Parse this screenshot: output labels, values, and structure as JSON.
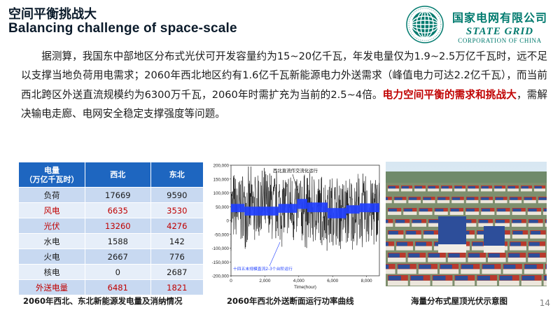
{
  "title": {
    "zh": "空间平衡挑战大",
    "en": "Balancing challenge of space-scale"
  },
  "logo": {
    "zh": "国家电网有限公司",
    "en": "STATE GRID",
    "sub": "CORPORATION OF CHINA",
    "colors": {
      "brand": "#007a6e"
    }
  },
  "paragraph": {
    "before": "据测算，我国东中部地区分布式光伏可开发容量约为15~20亿千瓦，年发电量仅为1.9~2.5万亿千瓦时，远不足以支撑当地负荷用电需求；2060年西北地区约有1.6亿千瓦新能源电力外送需求（峰值电力可达2.2亿千瓦），而当前西北跨区外送直流规模约为6300万千瓦，2060年时需扩充为当前的2.5~4倍。",
    "highlight": "电力空间平衡的需求和挑战大",
    "after": "，需解决输电走廊、电网安全稳定支撑强度等问题。"
  },
  "table": {
    "header_line1": "电量",
    "header_line2": "（万亿千瓦时）",
    "col1": "西北",
    "col2": "东北",
    "rows": [
      {
        "label": "负荷",
        "nw": "17669",
        "ne": "9590",
        "red": false
      },
      {
        "label": "风电",
        "nw": "6635",
        "ne": "3530",
        "red": true
      },
      {
        "label": "光伏",
        "nw": "13260",
        "ne": "4276",
        "red": true
      },
      {
        "label": "水电",
        "nw": "1588",
        "ne": "142",
        "red": false
      },
      {
        "label": "火电",
        "nw": "2667",
        "ne": "776",
        "red": false
      },
      {
        "label": "核电",
        "nw": "0",
        "ne": "2687",
        "red": false
      },
      {
        "label": "外送电量",
        "nw": "6481",
        "ne": "1821",
        "red": true
      }
    ]
  },
  "captions": {
    "table": "2060年西北、东北新能源发电量及消纳情况",
    "chart": "2060年西北外送断面运行功率曲线",
    "photo": "海量分布式屋顶光伏示意图"
  },
  "chart_data": {
    "type": "line",
    "xlabel": "Time(hour)",
    "ylabel": "",
    "xlim": [
      0,
      8760
    ],
    "ylim": [
      -200000,
      200000
    ],
    "xticks": [
      "0",
      "2,000",
      "4,000",
      "6,000",
      "8,000"
    ],
    "yticks": [
      "200,000",
      "150,000",
      "100,000",
      "50,000",
      "0",
      "-50,000",
      "-100,000",
      "-150,000",
      "-200,000"
    ],
    "annotations": [
      "西北直流作交流化运行",
      "十四五末规模直流2-3个台阶运行"
    ],
    "series": [
      {
        "color": "#000000",
        "mean": 40000,
        "spread": 155000
      },
      {
        "color": "#1f3fff",
        "steps": [
          {
            "x0": 0,
            "x1": 800,
            "lo": 30000,
            "hi": 60000
          },
          {
            "x0": 800,
            "x1": 2800,
            "lo": 18000,
            "hi": 50000
          },
          {
            "x0": 2800,
            "x1": 3900,
            "lo": 28000,
            "hi": 60000
          },
          {
            "x0": 3900,
            "x1": 4500,
            "lo": 42000,
            "hi": 78000
          },
          {
            "x0": 4500,
            "x1": 5700,
            "lo": 30000,
            "hi": 65000
          },
          {
            "x0": 5700,
            "x1": 6800,
            "lo": 8000,
            "hi": 45000
          },
          {
            "x0": 6800,
            "x1": 7600,
            "lo": 25000,
            "hi": 55000
          },
          {
            "x0": 7600,
            "x1": 8760,
            "lo": 30000,
            "hi": 62000
          }
        ]
      }
    ]
  },
  "page_number": "14"
}
